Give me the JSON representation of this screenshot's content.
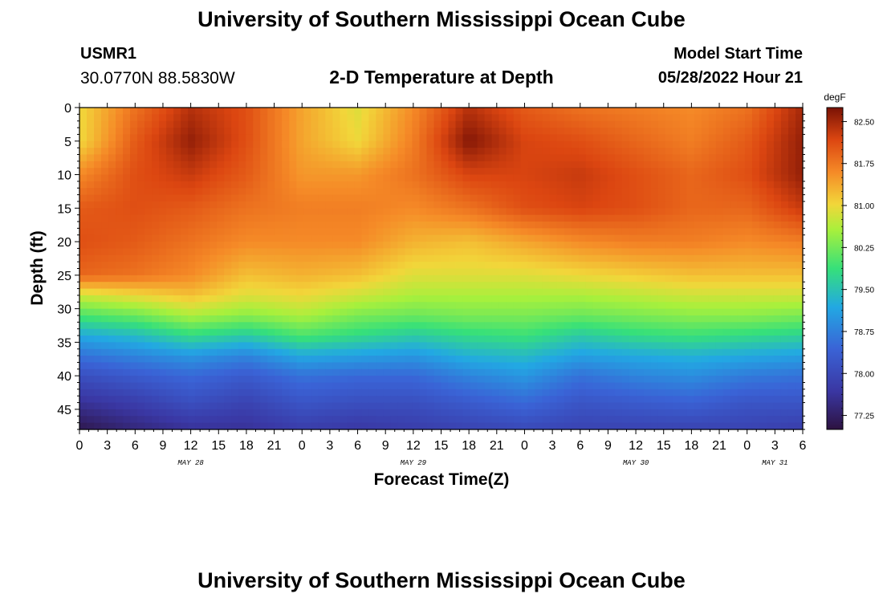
{
  "header": {
    "title": "University of Southern Mississippi Ocean Cube",
    "station_id": "USMR1",
    "station_coords": "30.0770N  88.5830W",
    "subtitle": "2-D Temperature at Depth",
    "model_start_label": "Model Start Time",
    "model_start_time": "05/28/2022 Hour 21"
  },
  "footer": {
    "title": "University of Southern Mississippi Ocean Cube"
  },
  "chart_data": {
    "type": "heatmap",
    "title": "2-D Temperature at Depth",
    "xlabel": "Forecast Time(Z)",
    "ylabel": "Depth (ft)",
    "x_hours_range": [
      0,
      78
    ],
    "y_depth_range_ft": [
      0,
      48
    ],
    "y_ticks": [
      "0",
      "5",
      "10",
      "15",
      "20",
      "25",
      "30",
      "35",
      "40",
      "45"
    ],
    "x_ticks": [
      "0",
      "3",
      "6",
      "9",
      "12",
      "15",
      "18",
      "21",
      "0",
      "3",
      "6",
      "9",
      "12",
      "15",
      "18",
      "21",
      "0",
      "3",
      "6",
      "9",
      "12",
      "15",
      "18",
      "21",
      "0",
      "3",
      "6"
    ],
    "date_labels": [
      {
        "label": "MAY 28",
        "hour": 12
      },
      {
        "label": "MAY 29",
        "hour": 36
      },
      {
        "label": "MAY 30",
        "hour": 60
      },
      {
        "label": "MAY 31",
        "hour": 75
      }
    ],
    "colorbar": {
      "unit": "degF",
      "min": 77.0,
      "max": 82.75,
      "tick_labels": [
        "82.50",
        "81.75",
        "81.00",
        "80.25",
        "79.50",
        "78.75",
        "78.00",
        "77.25"
      ]
    },
    "profile_hours": [
      0,
      6,
      12,
      18,
      24,
      30,
      36,
      42,
      48,
      54,
      60,
      66,
      72,
      78
    ],
    "profile_depths_ft": [
      0,
      5,
      10,
      15,
      20,
      25,
      28,
      31,
      34,
      37,
      40,
      44,
      48
    ],
    "temperature_degF": [
      [
        81.0,
        81.0,
        81.6,
        82.0,
        82.1,
        81.9,
        80.8,
        80.0,
        79.2,
        78.6,
        78.1,
        77.6,
        77.1
      ],
      [
        81.8,
        82.0,
        82.1,
        82.1,
        82.0,
        81.8,
        81.0,
        80.2,
        79.4,
        78.8,
        78.3,
        77.8,
        77.4
      ],
      [
        82.4,
        82.6,
        82.3,
        82.0,
        81.8,
        81.6,
        81.2,
        80.6,
        79.8,
        79.0,
        78.5,
        78.1,
        77.6
      ],
      [
        82.1,
        82.1,
        82.0,
        81.8,
        81.6,
        81.2,
        80.9,
        80.4,
        79.6,
        78.8,
        78.3,
        77.9,
        77.6
      ],
      [
        81.4,
        81.4,
        81.5,
        81.7,
        81.6,
        81.3,
        81.0,
        80.6,
        80.0,
        79.2,
        78.6,
        78.2,
        77.8
      ],
      [
        80.9,
        81.0,
        81.5,
        81.7,
        81.6,
        81.2,
        80.8,
        80.3,
        79.8,
        79.1,
        78.5,
        78.1,
        77.7
      ],
      [
        81.6,
        81.7,
        81.8,
        81.6,
        81.3,
        80.9,
        80.6,
        80.2,
        79.6,
        79.0,
        78.5,
        78.1,
        77.8
      ],
      [
        82.4,
        82.7,
        82.2,
        81.8,
        81.2,
        80.9,
        80.6,
        80.3,
        79.8,
        79.3,
        78.8,
        78.3,
        77.9
      ],
      [
        82.0,
        82.2,
        82.2,
        82.1,
        81.4,
        80.9,
        80.6,
        80.3,
        79.9,
        79.4,
        79.0,
        78.5,
        78.0
      ],
      [
        81.8,
        82.1,
        82.3,
        82.2,
        81.6,
        81.0,
        80.6,
        80.2,
        79.6,
        79.1,
        78.6,
        78.2,
        77.9
      ],
      [
        81.7,
        81.9,
        82.1,
        82.1,
        81.7,
        81.1,
        80.7,
        80.3,
        79.8,
        79.2,
        78.8,
        78.3,
        77.9
      ],
      [
        81.6,
        81.7,
        81.9,
        81.9,
        81.7,
        81.2,
        80.8,
        80.4,
        79.9,
        79.3,
        78.9,
        78.4,
        77.9
      ],
      [
        81.8,
        82.0,
        82.1,
        81.9,
        81.6,
        81.2,
        80.8,
        80.4,
        79.8,
        79.2,
        78.7,
        78.2,
        77.9
      ],
      [
        82.5,
        82.6,
        82.6,
        82.3,
        81.7,
        81.2,
        80.8,
        80.3,
        79.7,
        79.1,
        78.6,
        78.2,
        77.8
      ]
    ]
  }
}
